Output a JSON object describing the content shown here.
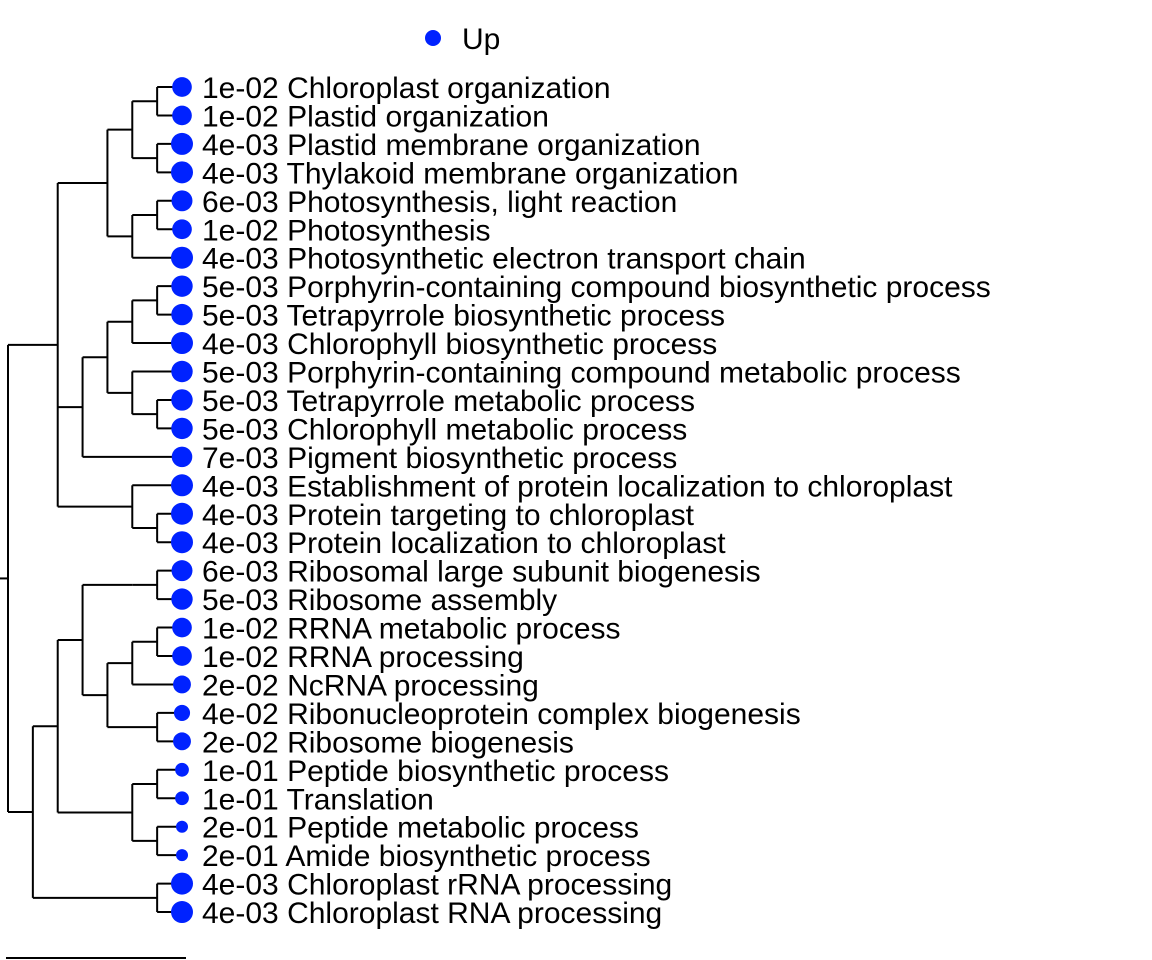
{
  "chart_data": {
    "type": "dendrogram",
    "title": "",
    "legend": {
      "placement": "top",
      "entries": [
        {
          "label": "Up",
          "color": "#0022ff"
        }
      ]
    },
    "point_color": "#0022ff",
    "marker_size_meaning": "-log10(p-value)",
    "leaves": [
      {
        "pvalue": "1e-02",
        "term": "Chloroplast organization"
      },
      {
        "pvalue": "1e-02",
        "term": "Plastid organization"
      },
      {
        "pvalue": "4e-03",
        "term": "Plastid membrane organization"
      },
      {
        "pvalue": "4e-03",
        "term": "Thylakoid membrane organization"
      },
      {
        "pvalue": "6e-03",
        "term": "Photosynthesis, light reaction"
      },
      {
        "pvalue": "1e-02",
        "term": "Photosynthesis"
      },
      {
        "pvalue": "4e-03",
        "term": "Photosynthetic electron transport chain"
      },
      {
        "pvalue": "5e-03",
        "term": "Porphyrin-containing compound biosynthetic process"
      },
      {
        "pvalue": "5e-03",
        "term": "Tetrapyrrole biosynthetic process"
      },
      {
        "pvalue": "4e-03",
        "term": "Chlorophyll biosynthetic process"
      },
      {
        "pvalue": "5e-03",
        "term": "Porphyrin-containing compound metabolic process"
      },
      {
        "pvalue": "5e-03",
        "term": "Tetrapyrrole metabolic process"
      },
      {
        "pvalue": "5e-03",
        "term": "Chlorophyll metabolic process"
      },
      {
        "pvalue": "7e-03",
        "term": "Pigment biosynthetic process"
      },
      {
        "pvalue": "4e-03",
        "term": "Establishment of protein localization to chloroplast"
      },
      {
        "pvalue": "4e-03",
        "term": "Protein targeting to chloroplast"
      },
      {
        "pvalue": "4e-03",
        "term": "Protein localization to chloroplast"
      },
      {
        "pvalue": "6e-03",
        "term": "Ribosomal large subunit biogenesis"
      },
      {
        "pvalue": "5e-03",
        "term": "Ribosome assembly"
      },
      {
        "pvalue": "1e-02",
        "term": "RRNA metabolic process"
      },
      {
        "pvalue": "1e-02",
        "term": "RRNA processing"
      },
      {
        "pvalue": "2e-02",
        "term": "NcRNA processing"
      },
      {
        "pvalue": "4e-02",
        "term": "Ribonucleoprotein complex biogenesis"
      },
      {
        "pvalue": "2e-02",
        "term": "Ribosome biogenesis"
      },
      {
        "pvalue": "1e-01",
        "term": "Peptide biosynthetic process"
      },
      {
        "pvalue": "1e-01",
        "term": "Translation"
      },
      {
        "pvalue": "2e-01",
        "term": "Peptide metabolic process"
      },
      {
        "pvalue": "2e-01",
        "term": "Amide biosynthetic process"
      },
      {
        "pvalue": "4e-03",
        "term": "Chloroplast rRNA processing"
      },
      {
        "pvalue": "4e-03",
        "term": "Chloroplast RNA processing"
      }
    ],
    "tree": [
      [
        [
          [
            [
              0,
              1
            ],
            [
              2,
              3
            ]
          ],
          [
            [
              4,
              5
            ],
            6
          ]
        ],
        [
          [
            [
              [
                7,
                8
              ],
              9
            ],
            [
              10,
              [
                11,
                12
              ]
            ]
          ],
          13
        ],
        [
          14,
          [
            15,
            16
          ]
        ]
      ],
      [
        [
          [
            [
              [
                17,
                18
              ]
            ],
            [
              [
                [
                  19,
                  20
                ],
                21
              ],
              [
                22,
                23
              ]
            ]
          ],
          [
            [
              24,
              25
            ],
            [
              26,
              27
            ]
          ]
        ],
        [
          28,
          29
        ]
      ]
    ]
  }
}
